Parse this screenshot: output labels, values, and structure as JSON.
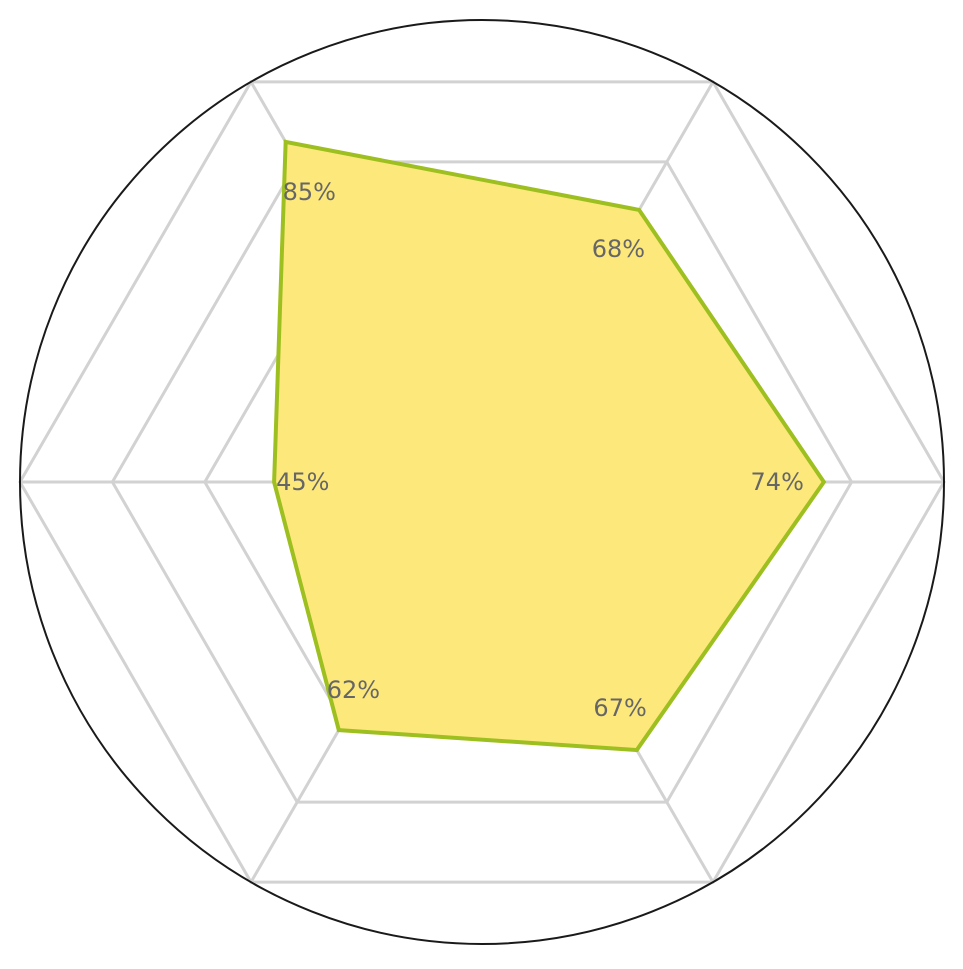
{
  "chart_data": {
    "type": "radar",
    "axes_count": 6,
    "values": [
      74,
      68,
      85,
      45,
      62,
      67
    ],
    "value_labels": [
      "74%",
      "68%",
      "85%",
      "45%",
      "62%",
      "67%"
    ],
    "rmax": 100,
    "grid_levels": [
      20,
      40,
      60,
      80,
      100
    ],
    "grid": true,
    "colors": {
      "fill": "#fde87c",
      "line": "#9dbf1f",
      "grid": "#d2d2d2",
      "outline": "#1a1a1a",
      "label": "#666666"
    }
  }
}
